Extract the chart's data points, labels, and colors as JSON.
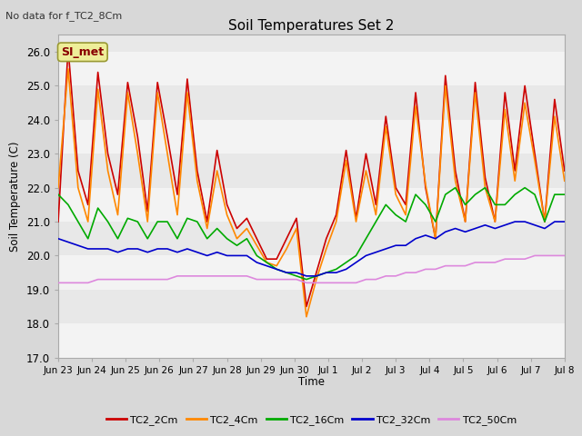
{
  "title": "Soil Temperatures Set 2",
  "ylabel": "Soil Temperature (C)",
  "xlabel": "Time",
  "note": "No data for f_TC2_8Cm",
  "annotation": "SI_met",
  "ylim": [
    17.0,
    26.5
  ],
  "yticks": [
    17.0,
    18.0,
    19.0,
    20.0,
    21.0,
    22.0,
    23.0,
    24.0,
    25.0,
    26.0
  ],
  "x_tick_labels": [
    "Jun 23",
    "Jun 24",
    "Jun 25",
    "Jun 26",
    "Jun 27",
    "Jun 28",
    "Jun 29",
    "Jun 30",
    "Jul 1",
    "Jul 2",
    "Jul 3",
    "Jul 4",
    "Jul 5",
    "Jul 6",
    "Jul 7",
    "Jul 8"
  ],
  "fig_bg_color": "#d8d8d8",
  "plot_bg_color": "#e8e8e8",
  "stripe_color": "#ffffff",
  "series_names": [
    "TC2_2Cm",
    "TC2_4Cm",
    "TC2_16Cm",
    "TC2_32Cm",
    "TC2_50Cm"
  ],
  "series_colors": [
    "#cc0000",
    "#ff8800",
    "#00aa00",
    "#0000cc",
    "#dd88dd"
  ],
  "series_lw": [
    1.2,
    1.2,
    1.2,
    1.2,
    1.2
  ],
  "TC2_2Cm": [
    21.0,
    26.1,
    22.5,
    21.5,
    25.4,
    23.0,
    21.8,
    25.1,
    23.5,
    21.3,
    25.1,
    23.5,
    21.8,
    25.2,
    22.5,
    21.0,
    23.1,
    21.5,
    20.8,
    21.1,
    20.5,
    19.9,
    19.9,
    20.5,
    21.1,
    18.5,
    19.5,
    20.5,
    21.2,
    23.1,
    21.1,
    23.0,
    21.5,
    24.1,
    22.0,
    21.5,
    24.8,
    22.0,
    20.5,
    25.3,
    22.5,
    21.0,
    25.1,
    22.3,
    21.0,
    24.8,
    22.5,
    25.0,
    23.0,
    21.0,
    24.6,
    22.5
  ],
  "TC2_4Cm": [
    22.0,
    25.5,
    22.0,
    21.0,
    24.9,
    22.5,
    21.2,
    24.8,
    23.0,
    21.0,
    24.8,
    23.0,
    21.2,
    24.8,
    22.2,
    20.8,
    22.5,
    21.2,
    20.5,
    20.8,
    20.3,
    19.8,
    19.7,
    20.2,
    20.8,
    18.2,
    19.3,
    20.2,
    21.0,
    22.8,
    21.0,
    22.5,
    21.2,
    23.8,
    21.8,
    21.2,
    24.4,
    22.1,
    20.5,
    25.0,
    22.2,
    21.0,
    24.8,
    22.0,
    21.0,
    24.3,
    22.2,
    24.5,
    22.8,
    21.0,
    24.1,
    22.2
  ],
  "TC2_16Cm": [
    21.8,
    21.5,
    21.0,
    20.5,
    21.4,
    21.0,
    20.5,
    21.1,
    21.0,
    20.5,
    21.0,
    21.0,
    20.5,
    21.1,
    21.0,
    20.5,
    20.8,
    20.5,
    20.3,
    20.5,
    20.0,
    19.8,
    19.6,
    19.5,
    19.4,
    19.3,
    19.4,
    19.5,
    19.6,
    19.8,
    20.0,
    20.5,
    21.0,
    21.5,
    21.2,
    21.0,
    21.8,
    21.5,
    21.0,
    21.8,
    22.0,
    21.5,
    21.8,
    22.0,
    21.5,
    21.5,
    21.8,
    22.0,
    21.8,
    21.0,
    21.8,
    21.8
  ],
  "TC2_32Cm": [
    20.5,
    20.4,
    20.3,
    20.2,
    20.2,
    20.2,
    20.1,
    20.2,
    20.2,
    20.1,
    20.2,
    20.2,
    20.1,
    20.2,
    20.1,
    20.0,
    20.1,
    20.0,
    20.0,
    20.0,
    19.8,
    19.7,
    19.6,
    19.5,
    19.5,
    19.4,
    19.4,
    19.5,
    19.5,
    19.6,
    19.8,
    20.0,
    20.1,
    20.2,
    20.3,
    20.3,
    20.5,
    20.6,
    20.5,
    20.7,
    20.8,
    20.7,
    20.8,
    20.9,
    20.8,
    20.9,
    21.0,
    21.0,
    20.9,
    20.8,
    21.0,
    21.0
  ],
  "TC2_50Cm": [
    19.2,
    19.2,
    19.2,
    19.2,
    19.3,
    19.3,
    19.3,
    19.3,
    19.3,
    19.3,
    19.3,
    19.3,
    19.4,
    19.4,
    19.4,
    19.4,
    19.4,
    19.4,
    19.4,
    19.4,
    19.3,
    19.3,
    19.3,
    19.3,
    19.3,
    19.2,
    19.2,
    19.2,
    19.2,
    19.2,
    19.2,
    19.3,
    19.3,
    19.4,
    19.4,
    19.5,
    19.5,
    19.6,
    19.6,
    19.7,
    19.7,
    19.7,
    19.8,
    19.8,
    19.8,
    19.9,
    19.9,
    19.9,
    20.0,
    20.0,
    20.0,
    20.0
  ]
}
